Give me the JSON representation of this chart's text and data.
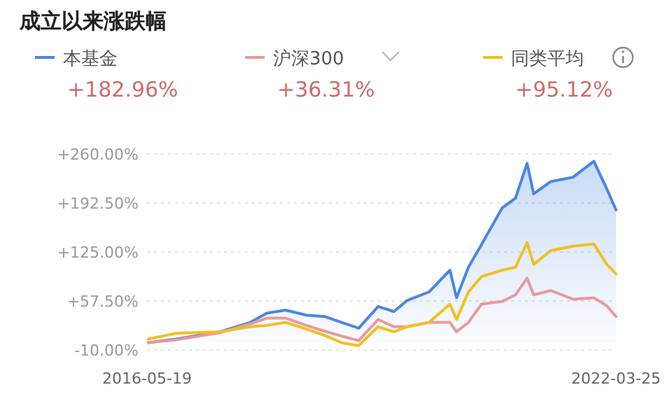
{
  "chart_data": {
    "type": "line",
    "title": "成立以来涨跌幅",
    "x": [
      "2016-05-25",
      "2016-09-27",
      "2017-04-17",
      "2017-09-01",
      "2017-11-17",
      "2018-02-09",
      "2018-05-15",
      "2018-08-06",
      "2018-10-23",
      "2019-01-08",
      "2019-04-07",
      "2019-06-18",
      "2019-08-16",
      "2019-11-25",
      "2020-02-28",
      "2020-03-29",
      "2020-05-22",
      "2020-07-20",
      "2020-10-23",
      "2020-12-22",
      "2021-02-13",
      "2021-03-15",
      "2021-06-01",
      "2021-09-10",
      "2021-12-14",
      "2022-02-11",
      "2022-03-25"
    ],
    "series": [
      {
        "name": "本基金",
        "type": "area",
        "color": "#4a86e0",
        "values": [
          0,
          5,
          15,
          28,
          41,
          45,
          38,
          36,
          28,
          20,
          50,
          43,
          58,
          70,
          100,
          62,
          104,
          135,
          186,
          199,
          247,
          205,
          222,
          228,
          250,
          212,
          183
        ]
      },
      {
        "name": "沪深300",
        "color": "#e8999c",
        "values": [
          0,
          4,
          14,
          26,
          34,
          34,
          24,
          16,
          9,
          3,
          32,
          22,
          22,
          28,
          28,
          15,
          28,
          53,
          57,
          66,
          89,
          66,
          72,
          60,
          62,
          51,
          36
        ]
      },
      {
        "name": "同类平均",
        "color": "#f0c020",
        "values": [
          5,
          13,
          15,
          22,
          24,
          28,
          19,
          10,
          0,
          -4,
          22,
          15,
          22,
          28,
          53,
          32,
          70,
          91,
          100,
          104,
          138,
          108,
          127,
          133,
          136,
          108,
          95
        ]
      }
    ],
    "annotations": [
      "+182.96%",
      "+36.31%",
      "+95.12%"
    ],
    "xlim": [
      "2016-05-19",
      "2022-03-25"
    ],
    "xticks": [
      {
        "value": "2016-05-19",
        "label": "2016-05-19"
      },
      {
        "value": "2022-03-25",
        "label": "2022-03-25"
      }
    ],
    "ylim": [
      -10,
      260
    ],
    "yticks": [
      {
        "value": 260,
        "label": "+260.00%"
      },
      {
        "value": 192.5,
        "label": "+192.50%"
      },
      {
        "value": 125,
        "label": "+125.00%"
      },
      {
        "value": 57.5,
        "label": "+57.50%"
      },
      {
        "value": -10,
        "label": "-10.00%"
      }
    ],
    "grid": "y",
    "legend": "top",
    "marker": "none",
    "line_style": "solid"
  }
}
